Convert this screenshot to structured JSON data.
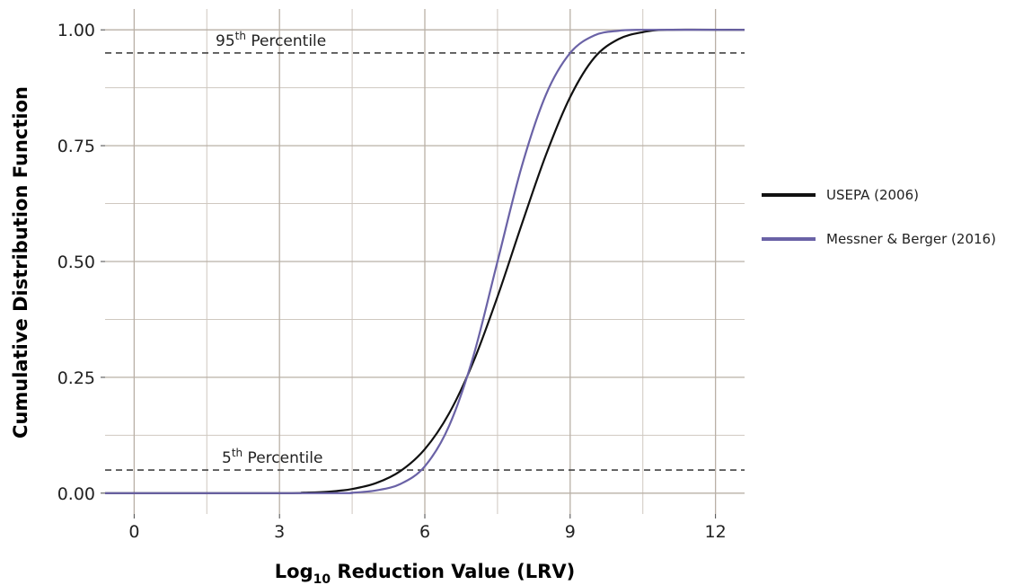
{
  "chart_data": {
    "type": "line",
    "xlabel": "Log",
    "xlabel_subscript": "10",
    "xlabel_rest": " Reduction Value (LRV)",
    "ylabel": "Cumulative Distribution Function",
    "xlim": [
      -0.6,
      12.6
    ],
    "ylim": [
      -0.045,
      1.045
    ],
    "x_ticks": [
      0,
      3,
      6,
      9,
      12
    ],
    "x_tick_labels": [
      "0",
      "3",
      "6",
      "9",
      "12"
    ],
    "y_ticks": [
      0,
      0.25,
      0.5,
      0.75,
      1.0
    ],
    "y_tick_labels": [
      "0.00",
      "0.25",
      "0.50",
      "0.75",
      "1.00"
    ],
    "grid": true,
    "legend_position": "right",
    "series": [
      {
        "name": "USEPA (2006)",
        "color": "#111111",
        "x": [
          -0.6,
          3.0,
          3.5,
          4.0,
          4.5,
          5.0,
          5.5,
          6.0,
          6.5,
          7.0,
          7.5,
          8.0,
          8.5,
          9.0,
          9.5,
          10.0,
          10.5,
          11.0,
          12.6
        ],
        "y": [
          0.0,
          0.0,
          0.001,
          0.003,
          0.009,
          0.022,
          0.048,
          0.095,
          0.172,
          0.283,
          0.424,
          0.58,
          0.73,
          0.855,
          0.94,
          0.98,
          0.995,
          1.0,
          1.0
        ]
      },
      {
        "name": "Messner & Berger (2016)",
        "color": "#6a62a6",
        "x": [
          -0.6,
          4.0,
          4.5,
          5.0,
          5.5,
          6.0,
          6.5,
          7.0,
          7.5,
          8.0,
          8.5,
          9.0,
          9.5,
          10.0,
          10.5,
          12.6
        ],
        "y": [
          0.0,
          0.0,
          0.001,
          0.006,
          0.02,
          0.058,
          0.145,
          0.295,
          0.5,
          0.705,
          0.86,
          0.95,
          0.988,
          0.998,
          1.0,
          1.0
        ]
      }
    ],
    "reference_lines": [
      {
        "y": 0.95,
        "label": "95",
        "label_sup": "th",
        "label_rest": " Percentile"
      },
      {
        "y": 0.05,
        "label": "5",
        "label_sup": "th",
        "label_rest": " Percentile"
      }
    ]
  }
}
